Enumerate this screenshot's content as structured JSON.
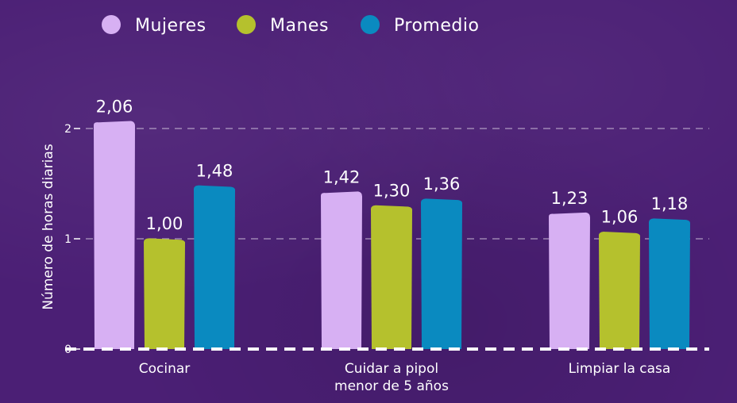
{
  "chart_data": {
    "type": "bar",
    "categories": [
      [
        "Cocinar"
      ],
      [
        "Cuidar a pipol",
        "menor de 5 años"
      ],
      [
        "Limpiar la casa"
      ]
    ],
    "series": [
      {
        "name": "Mujeres",
        "color": "#d7b0f3",
        "values": [
          2.06,
          1.42,
          1.23
        ],
        "labels": [
          "2,06",
          "1,42",
          "1,23"
        ]
      },
      {
        "name": "Manes",
        "color": "#b5c12d",
        "values": [
          1.0,
          1.3,
          1.06
        ],
        "labels": [
          "1,00",
          "1,30",
          "1,06"
        ]
      },
      {
        "name": "Promedio",
        "color": "#0a8ac0",
        "values": [
          1.48,
          1.36,
          1.18
        ],
        "labels": [
          "1,48",
          "1,36",
          "1,18"
        ]
      }
    ],
    "ylabel": "Número de horas diarias",
    "ylim": [
      0,
      2
    ],
    "yticks": [
      "0",
      "1",
      "2"
    ],
    "grid": true,
    "legend": "top-left"
  }
}
